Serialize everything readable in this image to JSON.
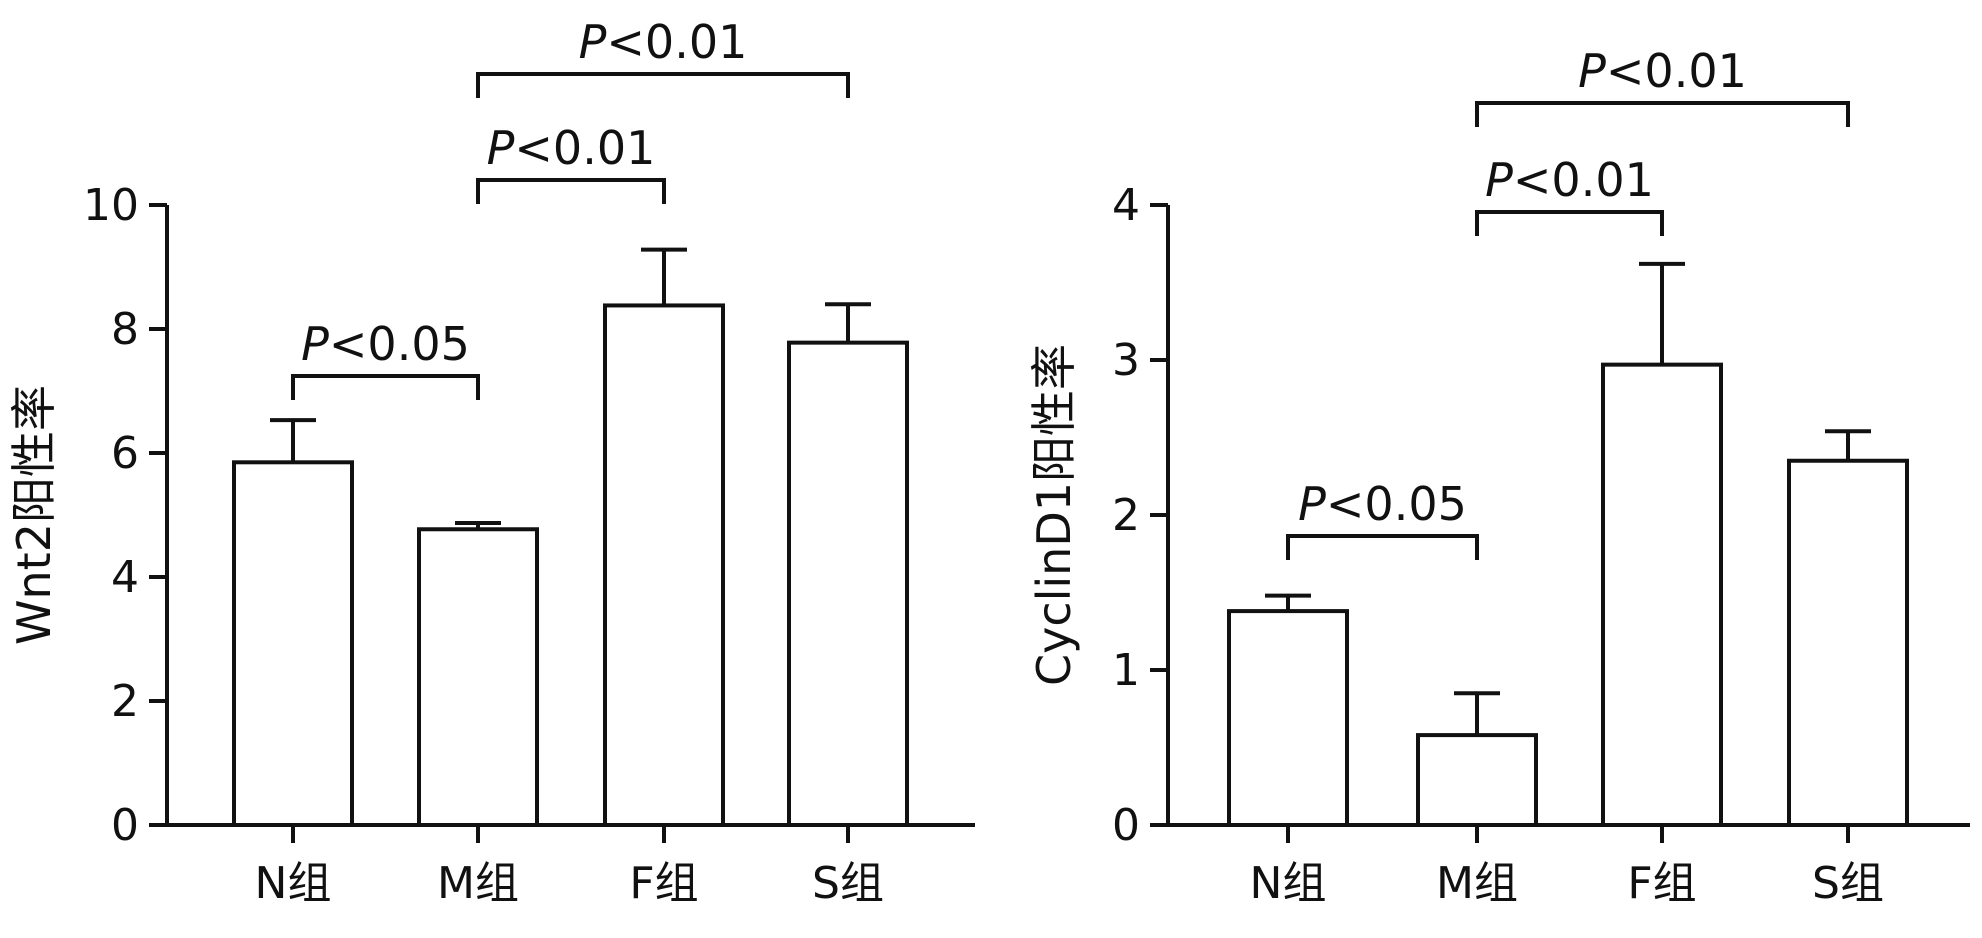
{
  "colors": {
    "bar_fill": "#ffffff",
    "stroke": "#111111",
    "background": "#ffffff"
  },
  "chart_data": [
    {
      "type": "bar",
      "title": "",
      "xlabel": "",
      "ylabel": "Wnt2阳性率",
      "categories": [
        "N组",
        "M组",
        "F组",
        "S组"
      ],
      "values": [
        5.85,
        4.77,
        8.38,
        7.78
      ],
      "error_upper": [
        0.68,
        0.1,
        0.9,
        0.62
      ],
      "ylim": [
        0,
        10
      ],
      "yticks": [
        0,
        2,
        4,
        6,
        8,
        10
      ],
      "ytick_labels": [
        "0",
        "2",
        "4",
        "6",
        "8",
        "10"
      ],
      "grid": false,
      "significance": [
        {
          "from": 0,
          "to": 1,
          "p_italic": "P",
          "text": "<0.05"
        },
        {
          "from": 1,
          "to": 2,
          "p_italic": "P",
          "text": "<0.01"
        },
        {
          "from": 1,
          "to": 3,
          "p_italic": "P",
          "text": "<0.01"
        }
      ]
    },
    {
      "type": "bar",
      "title": "",
      "xlabel": "",
      "ylabel": "CyclinD1阳性率",
      "categories": [
        "N组",
        "M组",
        "F组",
        "S组"
      ],
      "values": [
        1.38,
        0.58,
        2.97,
        2.35
      ],
      "error_upper": [
        0.1,
        0.27,
        0.65,
        0.19
      ],
      "ylim": [
        0,
        4
      ],
      "yticks": [
        0,
        1,
        2,
        3,
        4
      ],
      "ytick_labels": [
        "0",
        "1",
        "2",
        "3",
        "4"
      ],
      "grid": false,
      "significance": [
        {
          "from": 0,
          "to": 1,
          "p_italic": "P",
          "text": "<0.05"
        },
        {
          "from": 1,
          "to": 2,
          "p_italic": "P",
          "text": "<0.01"
        },
        {
          "from": 1,
          "to": 3,
          "p_italic": "P",
          "text": "<0.01"
        }
      ]
    }
  ]
}
